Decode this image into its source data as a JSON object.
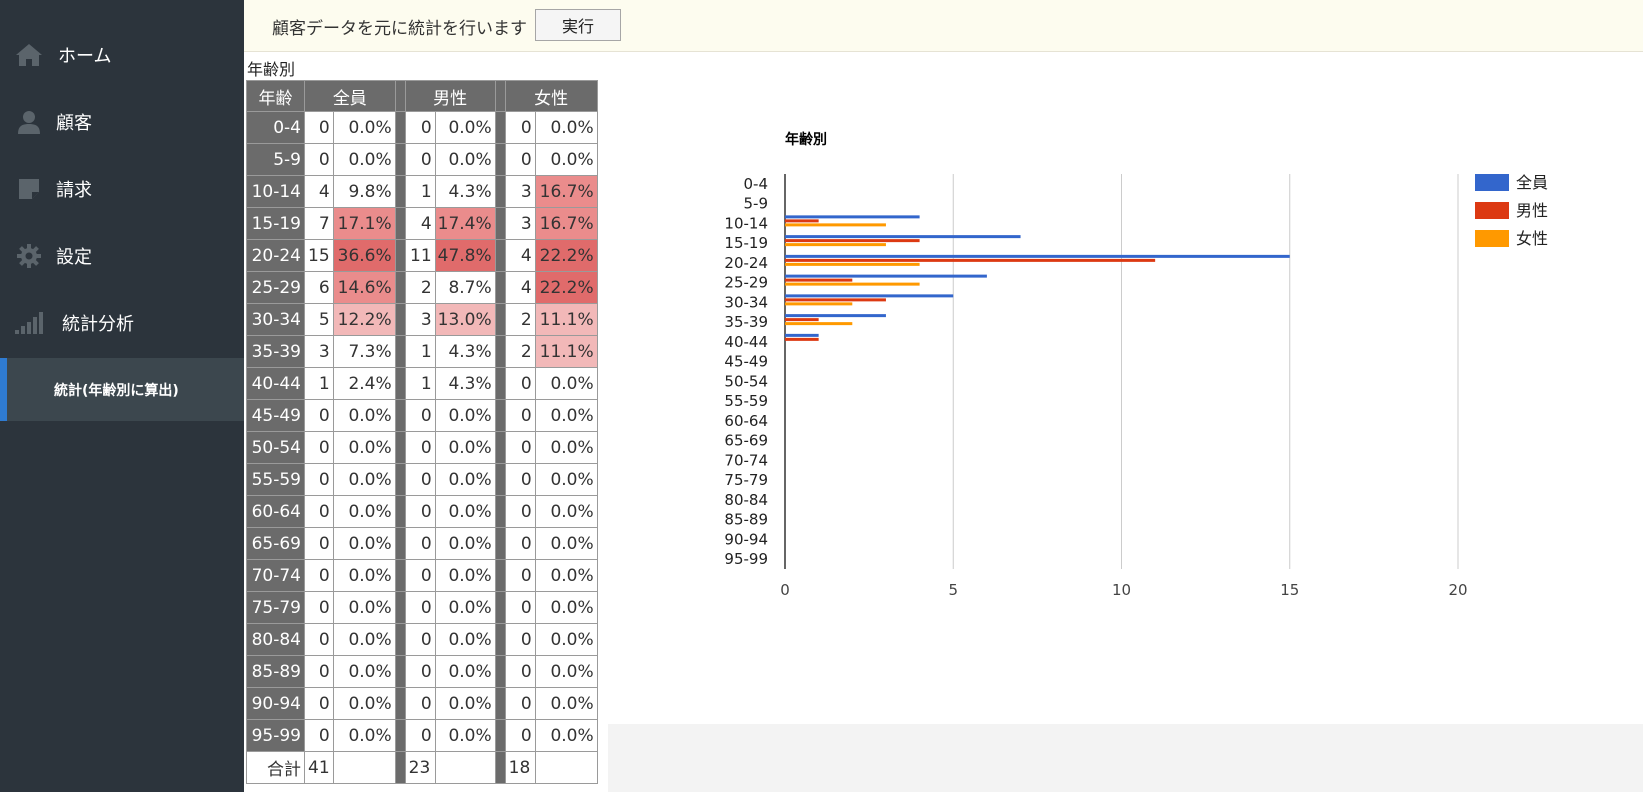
{
  "sidebar": {
    "items": [
      {
        "label": "ホーム",
        "icon": "home-icon"
      },
      {
        "label": "顧客",
        "icon": "person-icon"
      },
      {
        "label": "請求",
        "icon": "note-icon"
      },
      {
        "label": "設定",
        "icon": "gear-icon"
      },
      {
        "label": "統計分析",
        "icon": "signal-bars-icon"
      }
    ],
    "active_sub": {
      "label": "統計(年齢別に算出)"
    }
  },
  "topbar": {
    "message": "顧客データを元に統計を行います",
    "run_label": "実行"
  },
  "table": {
    "title": "年齢別",
    "headers": {
      "age": "年齢",
      "all": "全員",
      "male": "男性",
      "female": "女性"
    },
    "rows": [
      {
        "age": "0-4",
        "all": 0,
        "all_pct": "0.0%",
        "male": 0,
        "male_pct": "0.0%",
        "female": 0,
        "female_pct": "0.0%"
      },
      {
        "age": "5-9",
        "all": 0,
        "all_pct": "0.0%",
        "male": 0,
        "male_pct": "0.0%",
        "female": 0,
        "female_pct": "0.0%"
      },
      {
        "age": "10-14",
        "all": 4,
        "all_pct": "9.8%",
        "male": 1,
        "male_pct": "4.3%",
        "female": 3,
        "female_pct": "16.7%"
      },
      {
        "age": "15-19",
        "all": 7,
        "all_pct": "17.1%",
        "male": 4,
        "male_pct": "17.4%",
        "female": 3,
        "female_pct": "16.7%"
      },
      {
        "age": "20-24",
        "all": 15,
        "all_pct": "36.6%",
        "male": 11,
        "male_pct": "47.8%",
        "female": 4,
        "female_pct": "22.2%"
      },
      {
        "age": "25-29",
        "all": 6,
        "all_pct": "14.6%",
        "male": 2,
        "male_pct": "8.7%",
        "female": 4,
        "female_pct": "22.2%"
      },
      {
        "age": "30-34",
        "all": 5,
        "all_pct": "12.2%",
        "male": 3,
        "male_pct": "13.0%",
        "female": 2,
        "female_pct": "11.1%"
      },
      {
        "age": "35-39",
        "all": 3,
        "all_pct": "7.3%",
        "male": 1,
        "male_pct": "4.3%",
        "female": 2,
        "female_pct": "11.1%"
      },
      {
        "age": "40-44",
        "all": 1,
        "all_pct": "2.4%",
        "male": 1,
        "male_pct": "4.3%",
        "female": 0,
        "female_pct": "0.0%"
      },
      {
        "age": "45-49",
        "all": 0,
        "all_pct": "0.0%",
        "male": 0,
        "male_pct": "0.0%",
        "female": 0,
        "female_pct": "0.0%"
      },
      {
        "age": "50-54",
        "all": 0,
        "all_pct": "0.0%",
        "male": 0,
        "male_pct": "0.0%",
        "female": 0,
        "female_pct": "0.0%"
      },
      {
        "age": "55-59",
        "all": 0,
        "all_pct": "0.0%",
        "male": 0,
        "male_pct": "0.0%",
        "female": 0,
        "female_pct": "0.0%"
      },
      {
        "age": "60-64",
        "all": 0,
        "all_pct": "0.0%",
        "male": 0,
        "male_pct": "0.0%",
        "female": 0,
        "female_pct": "0.0%"
      },
      {
        "age": "65-69",
        "all": 0,
        "all_pct": "0.0%",
        "male": 0,
        "male_pct": "0.0%",
        "female": 0,
        "female_pct": "0.0%"
      },
      {
        "age": "70-74",
        "all": 0,
        "all_pct": "0.0%",
        "male": 0,
        "male_pct": "0.0%",
        "female": 0,
        "female_pct": "0.0%"
      },
      {
        "age": "75-79",
        "all": 0,
        "all_pct": "0.0%",
        "male": 0,
        "male_pct": "0.0%",
        "female": 0,
        "female_pct": "0.0%"
      },
      {
        "age": "80-84",
        "all": 0,
        "all_pct": "0.0%",
        "male": 0,
        "male_pct": "0.0%",
        "female": 0,
        "female_pct": "0.0%"
      },
      {
        "age": "85-89",
        "all": 0,
        "all_pct": "0.0%",
        "male": 0,
        "male_pct": "0.0%",
        "female": 0,
        "female_pct": "0.0%"
      },
      {
        "age": "90-94",
        "all": 0,
        "all_pct": "0.0%",
        "male": 0,
        "male_pct": "0.0%",
        "female": 0,
        "female_pct": "0.0%"
      },
      {
        "age": "95-99",
        "all": 0,
        "all_pct": "0.0%",
        "male": 0,
        "male_pct": "0.0%",
        "female": 0,
        "female_pct": "0.0%"
      }
    ],
    "total": {
      "label": "合計",
      "all": 41,
      "male": 23,
      "female": 18
    }
  },
  "colors": {
    "all": "#3366cc",
    "male": "#dc3912",
    "female": "#ff9900",
    "sidebar_bg": "#2c343c",
    "highlight_low": "#f2b8b8",
    "highlight_mid": "#ea8c8c",
    "highlight_high": "#e06b6b"
  },
  "chart_data": {
    "type": "bar",
    "orientation": "horizontal",
    "title": "年齢別",
    "categories": [
      "0-4",
      "5-9",
      "10-14",
      "15-19",
      "20-24",
      "25-29",
      "30-34",
      "35-39",
      "40-44",
      "45-49",
      "50-54",
      "55-59",
      "60-64",
      "65-69",
      "70-74",
      "75-79",
      "80-84",
      "85-89",
      "90-94",
      "95-99"
    ],
    "series": [
      {
        "name": "全員",
        "values": [
          0,
          0,
          4,
          7,
          15,
          6,
          5,
          3,
          1,
          0,
          0,
          0,
          0,
          0,
          0,
          0,
          0,
          0,
          0,
          0
        ]
      },
      {
        "name": "男性",
        "values": [
          0,
          0,
          1,
          4,
          11,
          2,
          3,
          1,
          1,
          0,
          0,
          0,
          0,
          0,
          0,
          0,
          0,
          0,
          0,
          0
        ]
      },
      {
        "name": "女性",
        "values": [
          0,
          0,
          3,
          3,
          4,
          4,
          2,
          2,
          0,
          0,
          0,
          0,
          0,
          0,
          0,
          0,
          0,
          0,
          0,
          0
        ]
      }
    ],
    "xlim": [
      0,
      20
    ],
    "xticks": [
      0,
      5,
      10,
      15,
      20
    ],
    "grid": true,
    "legend": "right"
  }
}
